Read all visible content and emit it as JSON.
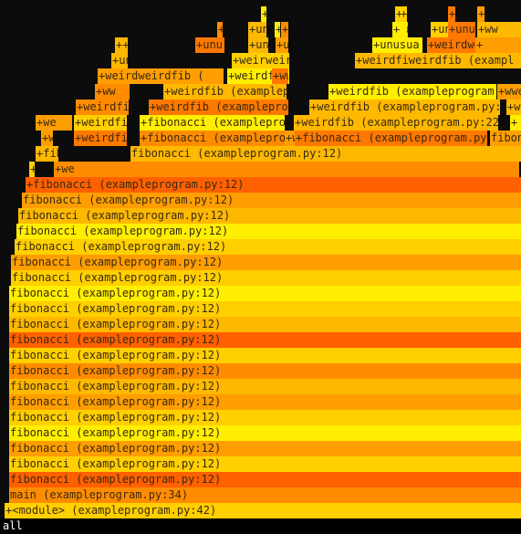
{
  "palette": {
    "c1": "#ffcf00",
    "c2": "#ffee00",
    "c3": "#ff9e00",
    "c4": "#ff7800",
    "c5": "#ff6000",
    "c6": "#ffb800",
    "c7": "#ff8c00"
  },
  "root_label": "all",
  "frames": [
    {
      "id": "f0",
      "text": "+<module> (exampleprogram.py:42)",
      "color": "c1"
    },
    {
      "id": "f1",
      "text": "main (exampleprogram.py:34)",
      "color": "c7"
    },
    {
      "id": "f2",
      "text": "fibonacci (exampleprogram.py:12)",
      "color": "c5"
    },
    {
      "id": "f3",
      "text": "fibonacci (exampleprogram.py:12)",
      "color": "c1"
    },
    {
      "id": "f4",
      "text": "fibonacci (exampleprogram.py:12)",
      "color": "c3"
    },
    {
      "id": "f5",
      "text": "fibonacci (exampleprogram.py:12)",
      "color": "c2"
    },
    {
      "id": "f6",
      "text": "fibonacci (exampleprogram.py:12)",
      "color": "c1"
    },
    {
      "id": "f7",
      "text": "fibonacci (exampleprogram.py:12)",
      "color": "c3"
    },
    {
      "id": "f8",
      "text": "fibonacci (exampleprogram.py:12)",
      "color": "c6"
    },
    {
      "id": "f9",
      "text": "fibonacci (exampleprogram.py:12)",
      "color": "c7"
    },
    {
      "id": "f10",
      "text": "fibonacci (exampleprogram.py:12)",
      "color": "c1"
    },
    {
      "id": "f11",
      "text": "fibonacci (exampleprogram.py:12)",
      "color": "c5"
    },
    {
      "id": "f12",
      "text": "fibonacci (exampleprogram.py:12)",
      "color": "c6"
    },
    {
      "id": "f13",
      "text": "fibonacci (exampleprogram.py:12)",
      "color": "c1"
    },
    {
      "id": "f14",
      "text": "fibonacci (exampleprogram.py:12)",
      "color": "c2"
    },
    {
      "id": "f15",
      "text": "fibonacci (exampleprogram.py:12)",
      "color": "c1"
    },
    {
      "id": "f16",
      "text": "fibonacci (exampleprogram.py:12)",
      "color": "c3"
    },
    {
      "id": "f17",
      "text": "fibonacci (exampleprogram.py:12)",
      "color": "c1"
    },
    {
      "id": "f18",
      "text": "fibonacci (exampleprogram.py:12)",
      "color": "c2"
    },
    {
      "id": "f19",
      "text": "fibonacci (exampleprogram.py:12)",
      "color": "c6"
    },
    {
      "id": "f20",
      "text": "fibonacci (exampleprogram.py:12)",
      "color": "c3"
    },
    {
      "id": "f21",
      "text": "+fibonacci (exampleprogram.py:12)",
      "color": "c5"
    },
    {
      "id": "f22",
      "text": "+fibfibonacci (exampleprogram.py:12)",
      "color": "c1"
    },
    {
      "id": "f23",
      "text": "+we",
      "color": "c7"
    },
    {
      "id": "f24",
      "text": "+fibonacci fibonacci (exampleprogram.py:12)",
      "color": "c6"
    },
    {
      "id": "f25",
      "text": "fibonacci (exampleprogram.py:12)",
      "color": "c6"
    },
    {
      "id": "f26",
      "text": "+w",
      "color": "c3"
    },
    {
      "id": "f27",
      "text": "+weirdfib",
      "color": "c4"
    },
    {
      "id": "f28",
      "text": "+fibonacci (exampleprog",
      "color": "c7"
    },
    {
      "id": "f29",
      "text": "+weirdfib (exampleprogr",
      "color": "c3"
    },
    {
      "id": "f30",
      "text": "+fibonacci (exampleprogram.py:10",
      "color": "c4"
    },
    {
      "id": "f31",
      "text": "fibon",
      "color": "c3"
    },
    {
      "id": "f32",
      "text": "+we",
      "color": "c3"
    },
    {
      "id": "f33",
      "text": "+weirdfi",
      "color": "c1"
    },
    {
      "id": "f34",
      "text": "+fibonacci (exampleprogr",
      "color": "c2"
    },
    {
      "id": "f35",
      "text": "+weirdfib (exampleprogram.py:22",
      "color": "c6"
    },
    {
      "id": "f36",
      "text": "+",
      "color": "c2"
    },
    {
      "id": "f37",
      "text": "+weirdfib",
      "color": "c7"
    },
    {
      "id": "f38",
      "text": "+weirdfib (exampleprogr",
      "color": "c4"
    },
    {
      "id": "f39",
      "text": "+weirdfib (exampleprogram.py:22",
      "color": "c6"
    },
    {
      "id": "f40",
      "text": "+w",
      "color": "c6"
    },
    {
      "id": "f41",
      "text": "+ww",
      "color": "c7"
    },
    {
      "id": "f42",
      "text": "+weirdfib (exampleprogram.py:",
      "color": "c6"
    },
    {
      "id": "f43",
      "text": "+weirdfib (exampleprogram.py:",
      "color": "c2"
    },
    {
      "id": "f44",
      "text": "+wwe",
      "color": "c3"
    },
    {
      "id": "f45",
      "text": "+weirdweirdfib (",
      "color": "c3"
    },
    {
      "id": "f46",
      "text": "+weirdfib (exampleprogram",
      "color": "c2"
    },
    {
      "id": "f47",
      "text": "+ww",
      "color": "c4"
    },
    {
      "id": "f48",
      "text": "+unus",
      "color": "c6"
    },
    {
      "id": "f49",
      "text": "+weirweirdfib",
      "color": "c1"
    },
    {
      "id": "f50",
      "text": "+weirdfiweirdfib (exampl",
      "color": "c6"
    },
    {
      "id": "f51",
      "text": "++",
      "color": "c6"
    },
    {
      "id": "f52",
      "text": "+unu",
      "color": "c4"
    },
    {
      "id": "f53",
      "text": "+unu",
      "color": "c6"
    },
    {
      "id": "f54",
      "text": "+u",
      "color": "c3"
    },
    {
      "id": "f55",
      "text": "+unusua",
      "color": "c2"
    },
    {
      "id": "f56",
      "text": "+weirdweirdfib",
      "color": "c4"
    },
    {
      "id": "f57",
      "text": "+",
      "color": "c3"
    },
    {
      "id": "f58",
      "text": "+u",
      "color": "c1"
    },
    {
      "id": "f59",
      "text": "+ww",
      "color": "c6"
    },
    {
      "id": "f60",
      "text": "+unus",
      "color": "c1"
    },
    {
      "id": "f61",
      "text": "+",
      "color": "c7"
    },
    {
      "id": "f62",
      "text": "+unu",
      "color": "c6"
    },
    {
      "id": "f63",
      "text": "+unus",
      "color": "c7"
    },
    {
      "id": "f64",
      "text": "+unu",
      "color": "c4"
    },
    {
      "id": "f65",
      "text": "+",
      "color": "c2"
    },
    {
      "id": "f66",
      "text": "+",
      "color": "c2"
    },
    {
      "id": "f67",
      "text": "+",
      "color": "c1"
    }
  ]
}
